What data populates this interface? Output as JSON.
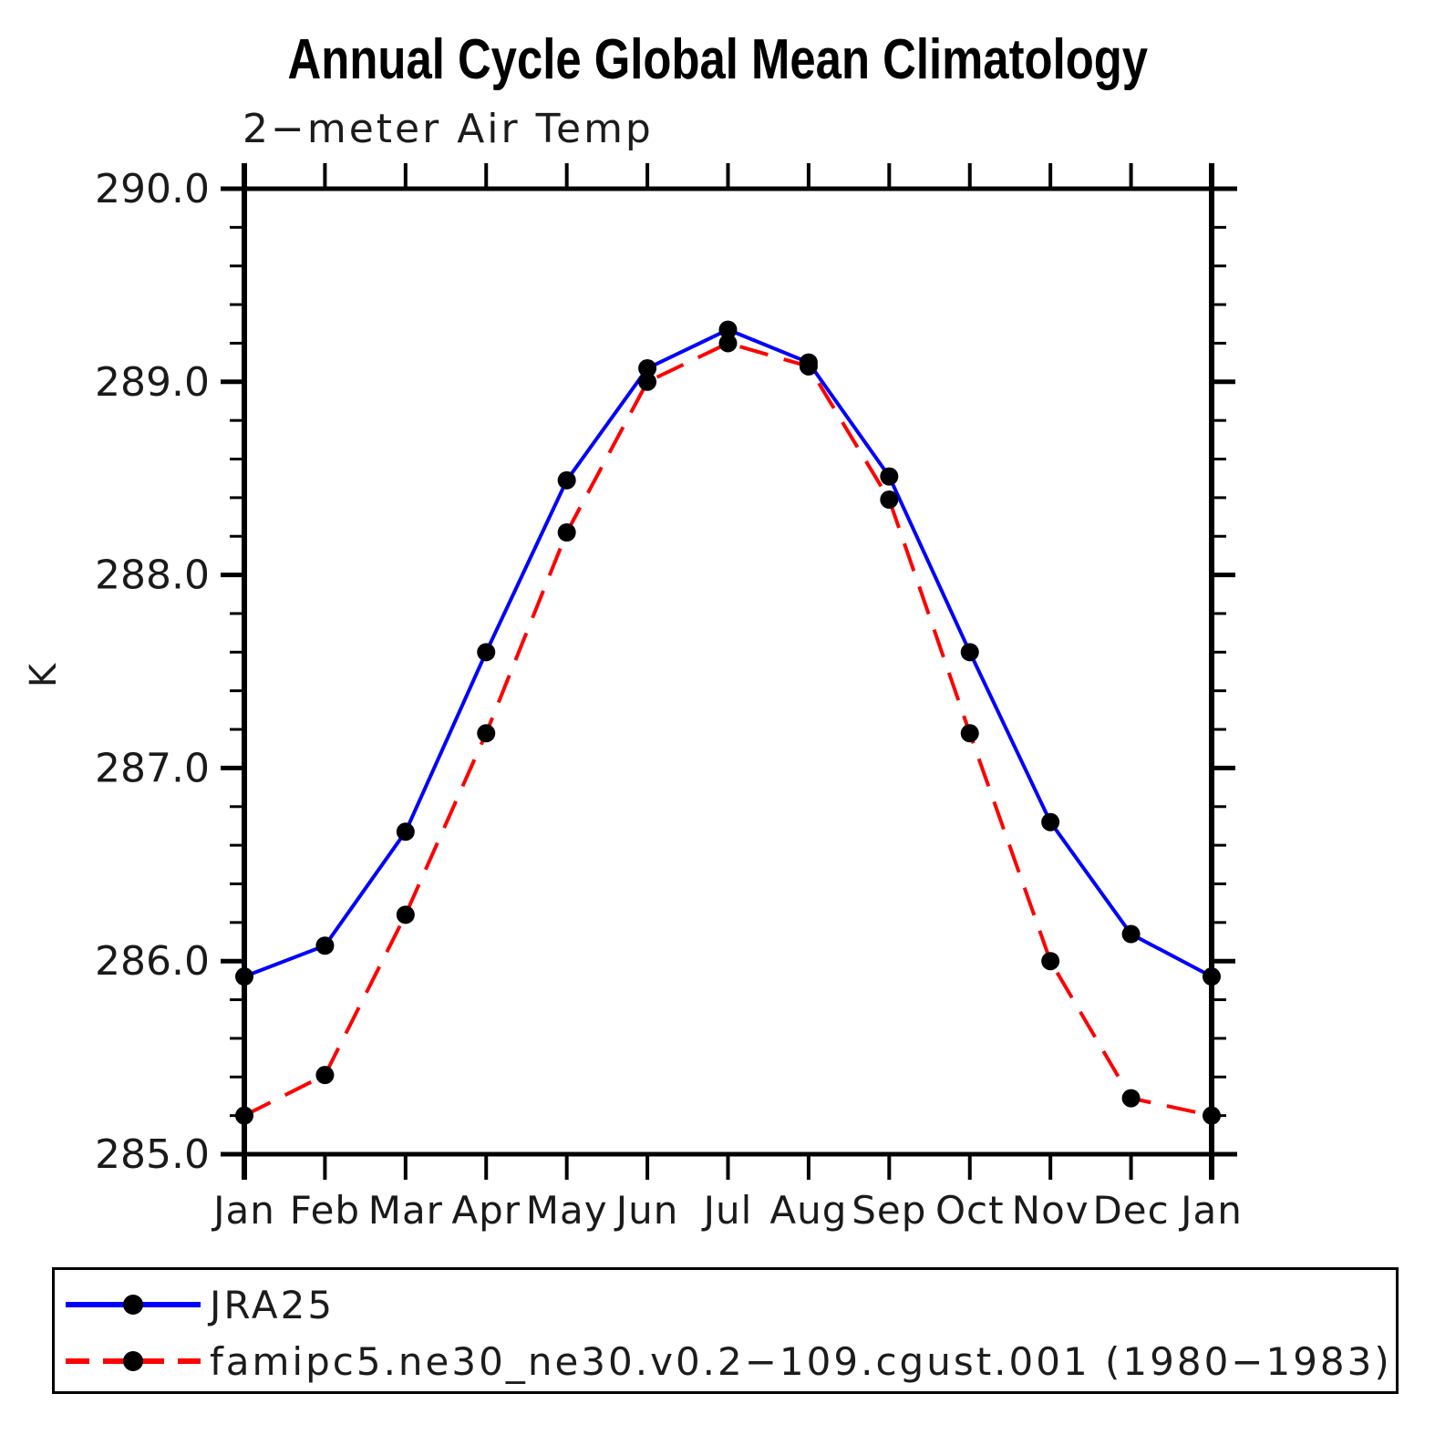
{
  "chart_data": {
    "type": "line",
    "title": "Annual Cycle Global Mean Climatology",
    "subtitle": "2−meter Air Temp",
    "xlabel": "",
    "ylabel": "K",
    "categories": [
      "Jan",
      "Feb",
      "Mar",
      "Apr",
      "May",
      "Jun",
      "Jul",
      "Aug",
      "Sep",
      "Oct",
      "Nov",
      "Dec",
      "Jan"
    ],
    "series": [
      {
        "name": "JRA25",
        "color": "#0000ff",
        "line_style": "solid",
        "marker": "filled-circle",
        "marker_color": "#000000",
        "values": [
          285.92,
          286.08,
          286.67,
          287.6,
          288.49,
          289.07,
          289.27,
          289.1,
          288.51,
          287.6,
          286.72,
          286.14,
          285.92
        ]
      },
      {
        "name": "famipc5.ne30_ne30.v0.2−109.cgust.001 (1980−1983)",
        "color": "#ff0000",
        "line_style": "dashed",
        "marker": "filled-circle",
        "marker_color": "#000000",
        "values": [
          285.2,
          285.41,
          286.24,
          287.18,
          288.22,
          289.0,
          289.2,
          289.08,
          288.39,
          287.18,
          286.0,
          285.29,
          285.2
        ]
      }
    ],
    "ylim": [
      285.0,
      290.0
    ],
    "yticks": [
      285.0,
      286.0,
      287.0,
      288.0,
      289.0,
      290.0
    ],
    "y_minor_step": 0.2,
    "grid": false,
    "legend_position": "bottom-left-box",
    "axis_color": "#000000"
  }
}
